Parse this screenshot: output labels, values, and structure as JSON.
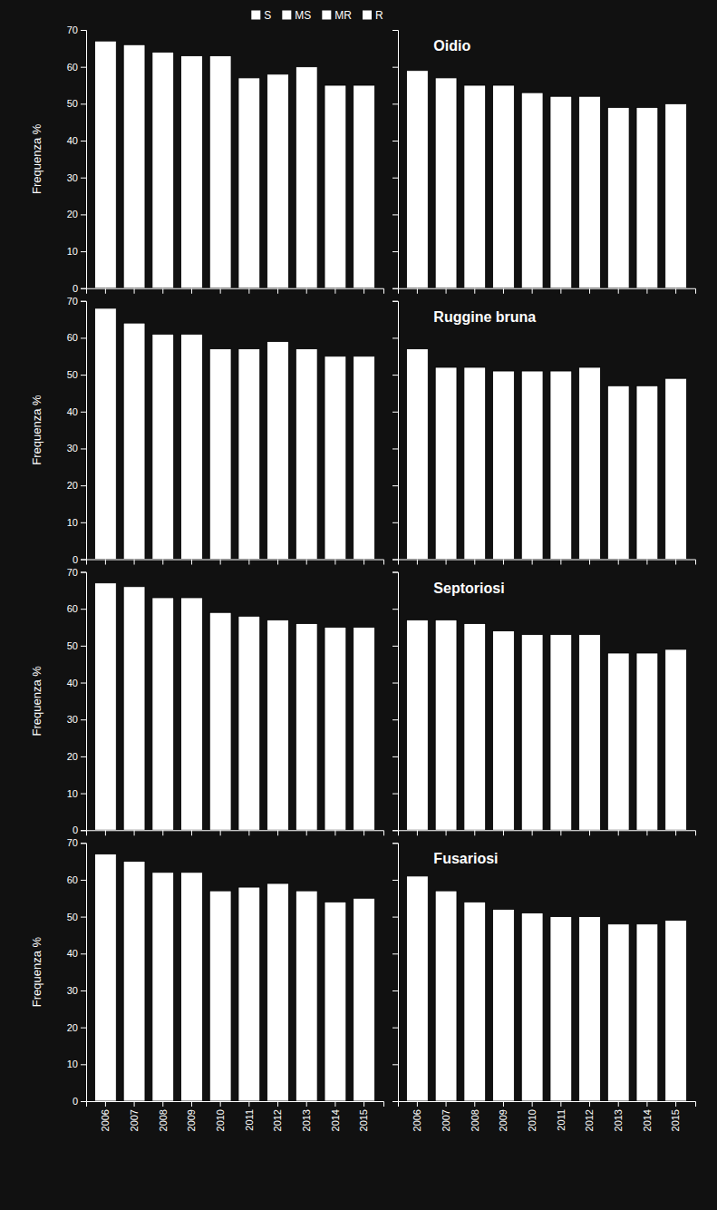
{
  "chart_data": [
    {
      "type": "bar",
      "y_label": "Frequenza %",
      "categories": [
        "2006",
        "2007",
        "2008",
        "2009",
        "2010",
        "2011",
        "2012",
        "2013",
        "2014",
        "2015"
      ],
      "values": [
        67,
        66,
        64,
        63,
        63,
        57,
        58,
        60,
        55,
        55
      ],
      "color": "#ffffff",
      "ylim": [
        0,
        70
      ],
      "yticks": [
        0,
        10,
        20,
        30,
        40,
        50,
        60,
        70
      ],
      "grid": false,
      "tick_labels": "y",
      "legend": "upper right",
      "legend_labels": [
        "S",
        "MS",
        "MR",
        "R"
      ]
    },
    {
      "type": "bar",
      "title": "Oidio",
      "categories": [
        "2006",
        "2007",
        "2008",
        "2009",
        "2010",
        "2011",
        "2012",
        "2013",
        "2014",
        "2015"
      ],
      "values": [
        59,
        57,
        55,
        55,
        53,
        52,
        52,
        49,
        49,
        50
      ],
      "color": "#ffffff",
      "ylim": [
        0,
        70
      ],
      "yticks": [
        0,
        10,
        20,
        30,
        40,
        50,
        60,
        70
      ],
      "grid": false,
      "tick_labels": false
    },
    {
      "type": "bar",
      "y_label": "Frequenza %",
      "categories": [
        "2006",
        "2007",
        "2008",
        "2009",
        "2010",
        "2011",
        "2012",
        "2013",
        "2014",
        "2015"
      ],
      "values": [
        68,
        64,
        61,
        61,
        57,
        57,
        59,
        57,
        55,
        55
      ],
      "color": "#ffffff",
      "ylim": [
        0,
        70
      ],
      "yticks": [
        0,
        10,
        20,
        30,
        40,
        50,
        60,
        70
      ],
      "grid": false,
      "tick_labels": "y"
    },
    {
      "type": "bar",
      "title": "Ruggine bruna",
      "categories": [
        "2006",
        "2007",
        "2008",
        "2009",
        "2010",
        "2011",
        "2012",
        "2013",
        "2014",
        "2015"
      ],
      "values": [
        57,
        52,
        52,
        51,
        51,
        51,
        52,
        47,
        47,
        49
      ],
      "color": "#ffffff",
      "ylim": [
        0,
        70
      ],
      "yticks": [
        0,
        10,
        20,
        30,
        40,
        50,
        60,
        70
      ],
      "grid": false,
      "tick_labels": false
    },
    {
      "type": "bar",
      "y_label": "Frequenza %",
      "categories": [
        "2006",
        "2007",
        "2008",
        "2009",
        "2010",
        "2011",
        "2012",
        "2013",
        "2014",
        "2015"
      ],
      "values": [
        67,
        66,
        63,
        63,
        59,
        58,
        57,
        56,
        55,
        55
      ],
      "color": "#ffffff",
      "ylim": [
        0,
        70
      ],
      "yticks": [
        0,
        10,
        20,
        30,
        40,
        50,
        60,
        70
      ],
      "grid": false,
      "tick_labels": "y"
    },
    {
      "type": "bar",
      "title": "Septoriosi",
      "categories": [
        "2006",
        "2007",
        "2008",
        "2009",
        "2010",
        "2011",
        "2012",
        "2013",
        "2014",
        "2015"
      ],
      "values": [
        57,
        57,
        56,
        54,
        53,
        53,
        53,
        48,
        48,
        49
      ],
      "color": "#ffffff",
      "ylim": [
        0,
        70
      ],
      "yticks": [
        0,
        10,
        20,
        30,
        40,
        50,
        60,
        70
      ],
      "grid": false,
      "tick_labels": false
    },
    {
      "type": "bar",
      "y_label": "Frequenza %",
      "categories": [
        "2006",
        "2007",
        "2008",
        "2009",
        "2010",
        "2011",
        "2012",
        "2013",
        "2014",
        "2015"
      ],
      "values": [
        67,
        65,
        62,
        62,
        57,
        58,
        59,
        57,
        54,
        55
      ],
      "color": "#ffffff",
      "ylim": [
        0,
        70
      ],
      "yticks": [
        0,
        10,
        20,
        30,
        40,
        50,
        60,
        70
      ],
      "grid": false,
      "tick_labels": true
    },
    {
      "type": "bar",
      "title": "Fusariosi",
      "categories": [
        "2006",
        "2007",
        "2008",
        "2009",
        "2010",
        "2011",
        "2012",
        "2013",
        "2014",
        "2015"
      ],
      "values": [
        61,
        57,
        54,
        52,
        51,
        50,
        50,
        48,
        48,
        49
      ],
      "color": "#ffffff",
      "ylim": [
        0,
        70
      ],
      "yticks": [
        0,
        10,
        20,
        30,
        40,
        50,
        60,
        70
      ],
      "grid": false,
      "tick_labels": "x"
    }
  ]
}
